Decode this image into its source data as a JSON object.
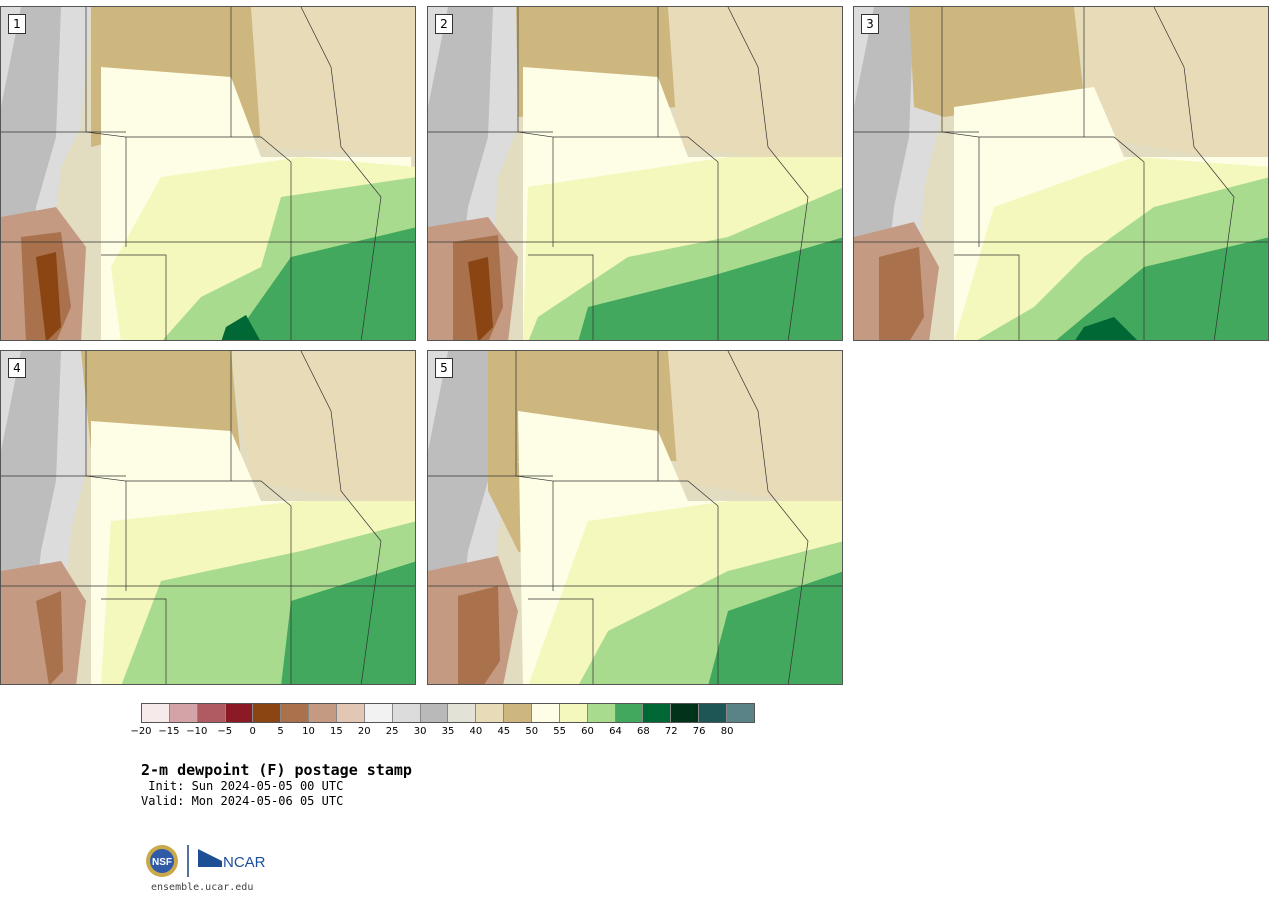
{
  "panels": [
    {
      "number": "1"
    },
    {
      "number": "2"
    },
    {
      "number": "3"
    },
    {
      "number": "4"
    },
    {
      "number": "5"
    }
  ],
  "colorbar": {
    "colors": [
      "#f6eaea",
      "#d4a3a8",
      "#b05a62",
      "#8b1a24",
      "#8b4513",
      "#a9714c",
      "#c49a82",
      "#e2c7b4",
      "#f2f2f2",
      "#dcdcdc",
      "#b9b9b9",
      "#e2e2d6",
      "#e8dcb8",
      "#cdb77e",
      "#fefde6",
      "#f5f8bc",
      "#a9db8e",
      "#41a85d",
      "#006835",
      "#00331a",
      "#1e5656",
      "#5a8388"
    ],
    "ticks": [
      "−20",
      "−15",
      "−10",
      "−5",
      "0",
      "5",
      "10",
      "15",
      "20",
      "25",
      "30",
      "35",
      "40",
      "45",
      "50",
      "55",
      "60",
      "64",
      "68",
      "72",
      "76",
      "80"
    ]
  },
  "title": "2-m dewpoint (F) postage stamp",
  "init": " Init: Sun 2024-05-05 00 UTC",
  "valid": "Valid: Mon 2024-05-06 05 UTC",
  "logos": {
    "nsf": "NSF",
    "ncar": "NCAR"
  },
  "site": "ensemble.ucar.edu"
}
